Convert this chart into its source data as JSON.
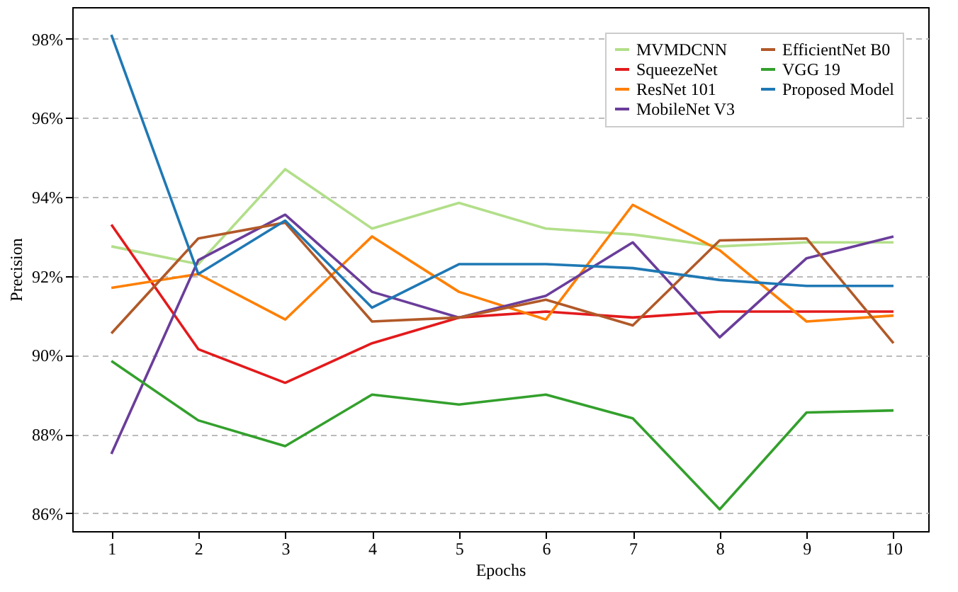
{
  "chart_data": {
    "type": "line",
    "xlabel": "Epochs",
    "ylabel": "Precision",
    "x": [
      1,
      2,
      3,
      4,
      5,
      6,
      7,
      8,
      9,
      10
    ],
    "xlim": [
      0.55,
      10.4
    ],
    "xticks": [
      1,
      2,
      3,
      4,
      5,
      6,
      7,
      8,
      9,
      10
    ],
    "ylim": [
      85.55,
      98.8
    ],
    "yticks": [
      {
        "value": 86,
        "label": "86%"
      },
      {
        "value": 88,
        "label": "88%"
      },
      {
        "value": 90,
        "label": "90%"
      },
      {
        "value": 92,
        "label": "92%"
      },
      {
        "value": 94,
        "label": "94%"
      },
      {
        "value": 96,
        "label": "96%"
      },
      {
        "value": 98,
        "label": "98%"
      }
    ],
    "grid": "y",
    "legend": "top right",
    "marker": "none",
    "line_style": "solid",
    "series": [
      {
        "name": "MVMDCNN",
        "color": "#b2df8a",
        "values": [
          92.75,
          92.3,
          94.7,
          93.2,
          93.85,
          93.2,
          93.05,
          92.75,
          92.85,
          92.85
        ]
      },
      {
        "name": "SqueezeNet",
        "color": "#e31a1c",
        "values": [
          93.3,
          90.15,
          89.3,
          90.3,
          90.95,
          91.1,
          90.95,
          91.1,
          91.1,
          91.1
        ]
      },
      {
        "name": "ResNet 101",
        "color": "#ff7f00",
        "values": [
          91.7,
          92.05,
          90.9,
          93.0,
          91.6,
          90.9,
          93.8,
          92.65,
          90.85,
          91.0
        ]
      },
      {
        "name": "MobileNet V3",
        "color": "#6a3d9a",
        "values": [
          87.5,
          92.4,
          93.55,
          91.6,
          90.95,
          91.5,
          92.85,
          90.45,
          92.45,
          93.0
        ]
      },
      {
        "name": "EfficientNet B0",
        "color": "#b15928",
        "values": [
          90.55,
          92.95,
          93.35,
          90.85,
          90.95,
          91.4,
          90.75,
          92.9,
          92.95,
          90.3
        ]
      },
      {
        "name": "VGG 19",
        "color": "#33a02c",
        "values": [
          89.85,
          88.35,
          87.7,
          89.0,
          88.75,
          89.0,
          88.4,
          86.1,
          88.55,
          88.6
        ]
      },
      {
        "name": "Proposed Model",
        "color": "#1f78b4",
        "values": [
          98.1,
          92.05,
          93.4,
          91.2,
          92.3,
          92.3,
          92.2,
          91.9,
          91.75,
          91.75
        ]
      }
    ]
  }
}
